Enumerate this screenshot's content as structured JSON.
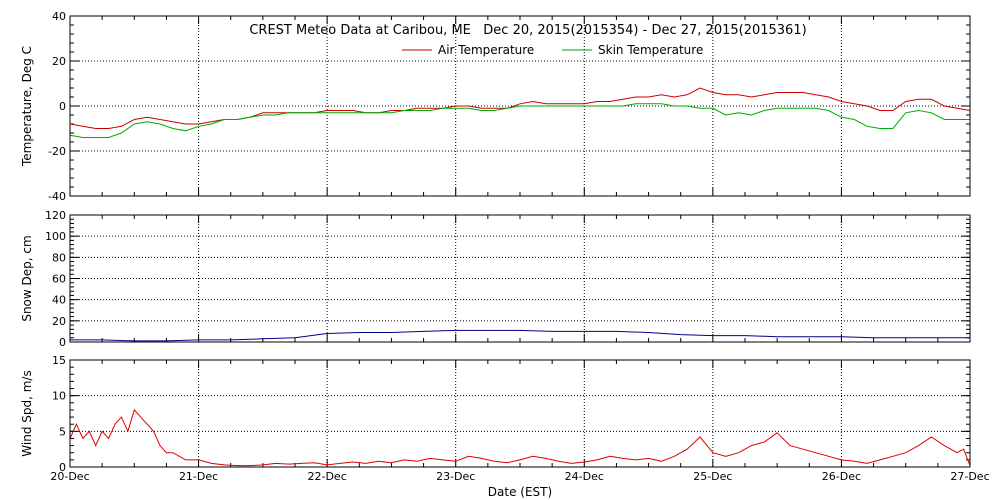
{
  "title": "CREST Meteo Data at Caribou, ME   Dec 20, 2015(2015354) - Dec 27, 2015(2015361)",
  "xlabel": "Date (EST)",
  "x_ticks": [
    "20-Dec",
    "21-Dec",
    "22-Dec",
    "23-Dec",
    "24-Dec",
    "25-Dec",
    "26-Dec",
    "27-Dec"
  ],
  "colors": {
    "air": "#cc0000",
    "skin": "#00aa00",
    "snow": "#00008b",
    "wind": "#dd0000",
    "frame": "#000000",
    "grid": "#000000"
  },
  "chart_data": [
    {
      "type": "line",
      "ylabel": "Temperature, Deg C",
      "ylim": [
        -40,
        40
      ],
      "yticks": [
        -40,
        -20,
        0,
        20,
        40
      ],
      "xlim": [
        0,
        7
      ],
      "grid": true,
      "legend": "top-center",
      "series": [
        {
          "name": "Air Temperature",
          "color": "#cc0000",
          "x": [
            0,
            0.1,
            0.2,
            0.3,
            0.4,
            0.5,
            0.6,
            0.7,
            0.8,
            0.9,
            1.0,
            1.1,
            1.2,
            1.3,
            1.4,
            1.5,
            1.6,
            1.7,
            1.8,
            1.9,
            2.0,
            2.1,
            2.2,
            2.3,
            2.4,
            2.5,
            2.6,
            2.7,
            2.8,
            2.9,
            3.0,
            3.1,
            3.2,
            3.3,
            3.4,
            3.5,
            3.6,
            3.7,
            3.8,
            3.9,
            4.0,
            4.1,
            4.2,
            4.3,
            4.4,
            4.5,
            4.6,
            4.7,
            4.8,
            4.9,
            5.0,
            5.1,
            5.2,
            5.3,
            5.4,
            5.5,
            5.6,
            5.7,
            5.8,
            5.9,
            6.0,
            6.1,
            6.2,
            6.3,
            6.4,
            6.5,
            6.6,
            6.7,
            6.8,
            6.9,
            7.0
          ],
          "values": [
            -8,
            -9,
            -10,
            -10,
            -9,
            -6,
            -5,
            -6,
            -7,
            -8,
            -8,
            -7,
            -6,
            -6,
            -5,
            -3,
            -3,
            -3,
            -3,
            -3,
            -2,
            -2,
            -2,
            -3,
            -3,
            -2,
            -2,
            -1,
            -1,
            -1,
            0,
            0,
            -1,
            -1,
            -1,
            1,
            2,
            1,
            1,
            1,
            1,
            2,
            2,
            3,
            4,
            4,
            5,
            4,
            5,
            8,
            6,
            5,
            5,
            4,
            5,
            6,
            6,
            6,
            5,
            4,
            2,
            1,
            0,
            -2,
            -2,
            2,
            3,
            3,
            0,
            -1,
            -2
          ]
        },
        {
          "name": "Skin Temperature",
          "color": "#00aa00",
          "x": [
            0,
            0.1,
            0.2,
            0.3,
            0.4,
            0.5,
            0.6,
            0.7,
            0.8,
            0.9,
            1.0,
            1.1,
            1.2,
            1.3,
            1.4,
            1.5,
            1.6,
            1.7,
            1.8,
            1.9,
            2.0,
            2.1,
            2.2,
            2.3,
            2.4,
            2.5,
            2.6,
            2.7,
            2.8,
            2.9,
            3.0,
            3.1,
            3.2,
            3.3,
            3.4,
            3.5,
            3.6,
            3.7,
            3.8,
            3.9,
            4.0,
            4.1,
            4.2,
            4.3,
            4.4,
            4.5,
            4.6,
            4.7,
            4.8,
            4.9,
            5.0,
            5.1,
            5.2,
            5.3,
            5.4,
            5.5,
            5.6,
            5.7,
            5.8,
            5.9,
            6.0,
            6.1,
            6.2,
            6.3,
            6.4,
            6.5,
            6.6,
            6.7,
            6.8,
            6.9,
            7.0
          ],
          "values": [
            -13,
            -14,
            -14,
            -14,
            -12,
            -8,
            -7,
            -8,
            -10,
            -11,
            -9,
            -8,
            -6,
            -6,
            -5,
            -4,
            -4,
            -3,
            -3,
            -3,
            -3,
            -3,
            -3,
            -3,
            -3,
            -3,
            -2,
            -2,
            -2,
            -1,
            -1,
            -1,
            -2,
            -2,
            -1,
            0,
            0,
            0,
            0,
            0,
            0,
            0,
            0,
            0,
            1,
            1,
            1,
            0,
            0,
            -1,
            -1,
            -4,
            -3,
            -4,
            -2,
            -1,
            -1,
            -1,
            -1,
            -2,
            -5,
            -6,
            -9,
            -10,
            -10,
            -3,
            -2,
            -3,
            -6,
            -6,
            -6
          ]
        }
      ]
    },
    {
      "type": "line",
      "ylabel": "Snow Dep, cm",
      "ylim": [
        0,
        120
      ],
      "yticks": [
        0,
        20,
        40,
        60,
        80,
        100,
        120
      ],
      "xlim": [
        0,
        7
      ],
      "grid": true,
      "series": [
        {
          "color": "#00008b",
          "x": [
            0,
            0.25,
            0.5,
            0.75,
            1.0,
            1.25,
            1.5,
            1.75,
            2.0,
            2.25,
            2.5,
            2.75,
            3.0,
            3.25,
            3.5,
            3.75,
            4.0,
            4.25,
            4.5,
            4.75,
            5.0,
            5.25,
            5.5,
            5.75,
            6.0,
            6.25,
            6.5,
            6.75,
            7.0
          ],
          "values": [
            2,
            2,
            1,
            1,
            2,
            2,
            3,
            4,
            8,
            9,
            9,
            10,
            11,
            11,
            11,
            10,
            10,
            10,
            9,
            7,
            6,
            6,
            5,
            5,
            5,
            4,
            4,
            4,
            4
          ]
        }
      ]
    },
    {
      "type": "line",
      "ylabel": "Wind Spd, m/s",
      "ylim": [
        0,
        15
      ],
      "yticks": [
        0,
        5,
        10,
        15
      ],
      "xlim": [
        0,
        7
      ],
      "grid": true,
      "series": [
        {
          "color": "#dd0000",
          "x": [
            0,
            0.05,
            0.1,
            0.15,
            0.2,
            0.25,
            0.3,
            0.35,
            0.4,
            0.45,
            0.5,
            0.55,
            0.6,
            0.65,
            0.7,
            0.75,
            0.8,
            0.85,
            0.9,
            0.95,
            1.0,
            1.1,
            1.2,
            1.3,
            1.4,
            1.5,
            1.6,
            1.7,
            1.8,
            1.9,
            2.0,
            2.1,
            2.2,
            2.3,
            2.4,
            2.5,
            2.6,
            2.7,
            2.8,
            2.9,
            3.0,
            3.1,
            3.2,
            3.3,
            3.4,
            3.5,
            3.6,
            3.7,
            3.8,
            3.9,
            4.0,
            4.1,
            4.2,
            4.3,
            4.4,
            4.5,
            4.6,
            4.7,
            4.8,
            4.9,
            5.0,
            5.1,
            5.2,
            5.3,
            5.4,
            5.5,
            5.6,
            5.7,
            5.8,
            5.9,
            6.0,
            6.1,
            6.2,
            6.3,
            6.4,
            6.5,
            6.6,
            6.7,
            6.8,
            6.9,
            6.95,
            7.0
          ],
          "values": [
            4,
            6,
            4,
            5,
            3,
            5,
            4,
            6,
            7,
            5,
            8,
            7,
            6,
            5,
            3,
            2,
            2,
            1.5,
            1,
            1,
            1,
            0.5,
            0.3,
            0.2,
            0.2,
            0.3,
            0.5,
            0.4,
            0.5,
            0.6,
            0.3,
            0.5,
            0.7,
            0.5,
            0.8,
            0.6,
            1.0,
            0.8,
            1.2,
            1.0,
            0.8,
            1.5,
            1.2,
            0.8,
            0.6,
            1.0,
            1.5,
            1.2,
            0.8,
            0.5,
            0.7,
            1.0,
            1.5,
            1.2,
            1.0,
            1.2,
            0.8,
            1.5,
            2.5,
            4.2,
            2.0,
            1.5,
            2.0,
            3.0,
            3.5,
            4.8,
            3.0,
            2.5,
            2.0,
            1.5,
            1.0,
            0.8,
            0.5,
            1.0,
            1.5,
            2.0,
            3.0,
            4.2,
            3.0,
            2.0,
            2.5,
            0.2
          ]
        }
      ]
    }
  ]
}
